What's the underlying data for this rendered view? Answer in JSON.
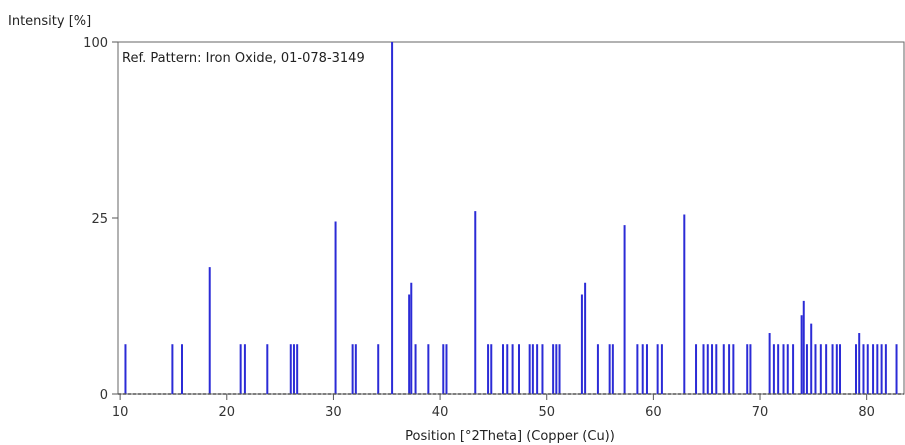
{
  "chart_data": {
    "type": "bar",
    "title": "Ref. Pattern: Iron Oxide, 01-078-3149",
    "xlabel": "Position [°2Theta] (Copper (Cu))",
    "ylabel": "Intensity [%]",
    "x_ticks": [
      10,
      20,
      30,
      40,
      50,
      60,
      70,
      80
    ],
    "y_ticks": [
      0,
      25,
      100
    ],
    "y_tick_labels": [
      "0",
      "25",
      "100"
    ],
    "y_scale": "sqrt",
    "xlim": [
      9.8,
      83.5
    ],
    "ylim": [
      0,
      100
    ],
    "grid": false,
    "line_color": "#2b2bd6",
    "x": [
      10.5,
      14.9,
      15.8,
      18.4,
      21.3,
      21.7,
      23.8,
      26.0,
      26.3,
      26.6,
      30.2,
      31.8,
      32.1,
      34.2,
      35.5,
      37.1,
      37.3,
      37.7,
      38.9,
      40.3,
      40.6,
      43.3,
      44.5,
      44.8,
      45.9,
      46.3,
      46.8,
      47.4,
      48.4,
      48.7,
      49.1,
      49.6,
      50.6,
      50.9,
      51.2,
      53.3,
      53.6,
      54.8,
      55.9,
      56.2,
      57.3,
      58.5,
      59.0,
      59.4,
      60.4,
      60.8,
      62.9,
      64.0,
      64.7,
      65.1,
      65.5,
      65.9,
      66.6,
      67.1,
      67.5,
      68.8,
      69.1,
      70.9,
      71.3,
      71.7,
      72.2,
      72.6,
      73.1,
      73.9,
      74.1,
      74.4,
      74.8,
      75.2,
      75.7,
      76.2,
      76.8,
      77.2,
      77.5,
      79.0,
      79.3,
      79.7,
      80.1,
      80.6,
      81.0,
      81.4,
      81.8,
      82.8
    ],
    "values": [
      2,
      2,
      2,
      13,
      2,
      2,
      2,
      2,
      2,
      2,
      24,
      2,
      2,
      2,
      100,
      8,
      10,
      2,
      2,
      2,
      2,
      27,
      2,
      2,
      2,
      2,
      2,
      2,
      2,
      2,
      2,
      2,
      2,
      2,
      2,
      8,
      10,
      2,
      2,
      2,
      23,
      2,
      2,
      2,
      2,
      2,
      26,
      2,
      2,
      2,
      2,
      2,
      2,
      2,
      2,
      2,
      2,
      3,
      2,
      2,
      2,
      2,
      2,
      5,
      7,
      2,
      4,
      2,
      2,
      2,
      2,
      2,
      2,
      2,
      3,
      2,
      2,
      2,
      2,
      2,
      2,
      2
    ]
  }
}
